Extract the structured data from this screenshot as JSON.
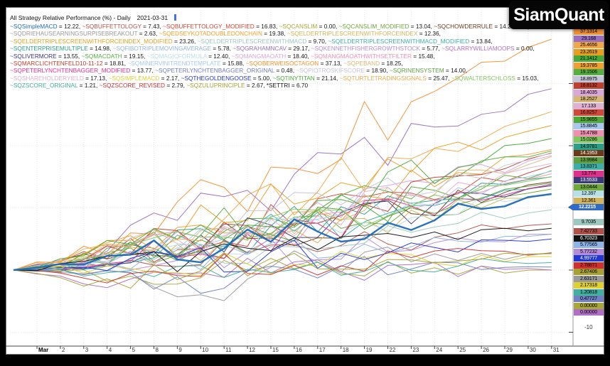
{
  "logo": {
    "text": "SiamQuant"
  },
  "title": {
    "text": "All Strategy Relative Performance (%) - Daily",
    "date": "2021-03-31"
  },
  "chart_data": {
    "type": "line",
    "title": "All Strategy Relative Performance (%) - Daily 2021-03-31",
    "x_categories": [
      "Mar",
      "2",
      "3",
      "4",
      "5",
      "8",
      "9",
      "10",
      "11",
      "12",
      "15",
      "16",
      "17",
      "18",
      "19",
      "22",
      "23",
      "24",
      "25",
      "26",
      "29",
      "30",
      "31"
    ],
    "ylim": [
      -10,
      41
    ],
    "grid": true,
    "y_axis_visible_label": "-10",
    "legend_position": "top",
    "series": [
      {
        "name": "~SQSimpleMACD",
        "legend_value": "12.22",
        "end_value": 12.2215,
        "end_label": "12.2215",
        "color": "#1e6bb8",
        "selected": true
      },
      {
        "name": "~SQBUFFETTOLOGY",
        "legend_value": "7.43",
        "end_value": 7.42733,
        "end_label": "7.42733",
        "color": "#b0524a"
      },
      {
        "name": "~SQBUFFETTOLOGY_MODIFIED",
        "legend_value": "16.83",
        "end_value": 16.8257,
        "end_label": "16.8257",
        "color": "#d04838"
      },
      {
        "name": "~SQCANSLIM",
        "legend_value": "0.00",
        "end_value": 0.0,
        "end_label": "0.00000",
        "color": "#a8a838"
      },
      {
        "name": "~SQCANSLIM_MODIFIED",
        "legend_value": "13.04",
        "end_value": 13.0444,
        "end_label": "13.0444",
        "color": "#70a83c"
      },
      {
        "name": "~SQCHOWDERRULE",
        "legend_value": "14.20",
        "end_value": 14.1953,
        "end_label": "14.1953",
        "color": "#6b3a1b"
      },
      {
        "name": "~SQ",
        "legend_value": null,
        "end_value": 15.9855,
        "end_label": "15.9855",
        "color": "#52a834",
        "truncated_by_logo": true
      },
      {
        "name": "~SQDRIEHAUSEARNINGSURPISEBREAKOUT",
        "legend_value": "2.63",
        "end_value": 2.63171,
        "end_label": "2.63171",
        "color": "#9a9a9a"
      },
      {
        "name": "~SQEDSEYKOTADOUBLEDONCHAIN",
        "legend_value": "19.38",
        "end_value": 19.3785,
        "end_label": "19.3785",
        "color": "#f0a030"
      },
      {
        "name": "~SQELDERTRIPLESCREENWITHFORCEINDEX",
        "legend_value": "12.36",
        "end_value": 12.361,
        "end_label": "12.361",
        "color": "#d2b45a"
      },
      {
        "name": "~SQELDERTRIPLESCREENWITHFORCEINDEX_MODIFIED",
        "legend_value": "23.26",
        "end_value": 23.2619,
        "end_label": "23.2619",
        "color": "#e8a01c"
      },
      {
        "name": "~SQELDERTRIPLESCREENWITHMACD",
        "legend_value": "9.70",
        "end_value": 9.7035,
        "end_label": "9.7035",
        "color": "#9cc8c0"
      },
      {
        "name": "~SQELDERTRIPLESCREENWITHMACD_MODIFIED",
        "legend_value": "13.84",
        "end_value": 13.8371,
        "end_label": "13.8371",
        "color": "#3cb0a8"
      },
      {
        "name": "~SQENTERPRISEMULTIPLE",
        "legend_value": "14.98",
        "end_value": 14.9781,
        "end_label": "14.9781",
        "color": "#2aa088"
      },
      {
        "name": "~SQFIBOTRIPLEMOVINGAVERAGE",
        "legend_value": "5.78",
        "end_value": 5.77565,
        "end_label": "5.77565",
        "color": "#8fb4e8"
      },
      {
        "name": "~SQGRAHAMNCAV",
        "legend_value": "29.17",
        "end_value": 29.168,
        "end_label": "29.168",
        "color": "#9a6fc0"
      },
      {
        "name": "~SQKENNETHFISHERGROWTHSTOCK",
        "legend_value": "5.77",
        "end_value": 5.77232,
        "end_label": "5.77232",
        "color": "#b48cd8"
      },
      {
        "name": "~SQLARRYWILLIAMOOPS",
        "legend_value": "0.00",
        "end_value": 0.0,
        "end_label": "0.00000",
        "color": "#b070c8"
      },
      {
        "name": "~SQLIVERMORE",
        "legend_value": "13.55",
        "end_value": 13.5533,
        "end_label": "13.5533",
        "color": "#3a3a78"
      },
      {
        "name": "~SQMACDATH",
        "legend_value": "19.15",
        "end_value": 19.1506,
        "end_label": "19.1506",
        "color": "#55b040"
      },
      {
        "name": "~SQMAGICFORMULA",
        "legend_value": "12.40",
        "end_value": 12.397,
        "end_label": "12.397",
        "color": "#b8e0e8"
      },
      {
        "name": "~SQMANGMAOATH",
        "legend_value": "18.40",
        "end_value": 18.4035,
        "end_label": "18.4035",
        "color": "#d8a8d8"
      },
      {
        "name": "~SQMANGMAOATHWITHSETFILTER",
        "legend_value": "15.48",
        "end_value": 15.4788,
        "end_label": "15.4788",
        "color": "#f090b0"
      },
      {
        "name": "~SQMARCLICHTENFELD10-11-12",
        "legend_value": "18.81",
        "end_value": 18.8132,
        "end_label": "18.8132",
        "color": "#c04030"
      },
      {
        "name": "~SQMINERVINITRENDTEMPLATE",
        "legend_value": "15.88",
        "end_value": 15.8845,
        "end_label": "15.8845",
        "color": "#a8c8f0"
      },
      {
        "name": "~SQOBERWEISOCTAGON",
        "legend_value": "37.13",
        "end_value": 37.1314,
        "end_label": "37.1314",
        "color": "#f49030"
      },
      {
        "name": "~SQPEBAND",
        "legend_value": "18.25",
        "end_value": 18.2527,
        "end_label": "18.2527",
        "color": "#d8b878"
      },
      {
        "name": "~SQPETERLYNCHTENBAGGER_MODIFIED",
        "legend_value": "13.77",
        "end_value": 13.774,
        "end_label": "13.774",
        "color": "#e0308c"
      },
      {
        "name": "~SQPETERLYNCHTENBAGGER_ORIGINAL",
        "legend_value": "0.48",
        "end_value": 0.47727,
        "end_label": "0.47727",
        "color": "#7080c0"
      },
      {
        "name": "~SQPIOTROSKIFSCORE",
        "legend_value": "18.90",
        "end_value": 18.8975,
        "end_label": "18.8975",
        "color": "#c4c4d8"
      },
      {
        "name": "~SQRINENSYSTEM",
        "legend_value": "14.00",
        "end_value": 13.9984,
        "end_label": "13.9984",
        "color": "#60a040"
      },
      {
        "name": "~SQSHAREHOLDERYIELD",
        "legend_value": "17.13",
        "end_value": 17.133,
        "end_label": "17.133",
        "color": "#e0b0d0"
      },
      {
        "name": "~SQSIMPLEMACD",
        "legend_value": "2.17",
        "end_value": 2.17318,
        "end_label": "2.17318",
        "color": "#e0d030"
      },
      {
        "name": "~SQTHEGOLDENGOOSE",
        "legend_value": "5.00",
        "end_value": 4.99777,
        "end_label": "4.99777",
        "color": "#2038d0"
      },
      {
        "name": "~SQTINYTITAN",
        "legend_value": "21.14",
        "end_value": 21.1412,
        "end_label": "21.1412",
        "color": "#48a838"
      },
      {
        "name": "~SQTURTLETRADINGSIGNALS",
        "legend_value": "25.47",
        "end_value": 25.4656,
        "end_label": "25.4656",
        "color": "#f0a848"
      },
      {
        "name": "~SQWALTERSCHLOSS",
        "legend_value": "15.03",
        "end_value": 15.0286,
        "end_label": "15.0286",
        "color": "#80c860"
      },
      {
        "name": "~SQZSCORE_ORIGINAL",
        "legend_value": "1.21",
        "end_value": 1.20818,
        "end_label": "1.20818",
        "color": "#40b0a0"
      },
      {
        "name": "~SQZSCORE_REVISED",
        "legend_value": "2.79",
        "end_value": 2.78871,
        "end_label": "2.78871",
        "color": "#d03030"
      },
      {
        "name": "~SQZULUPRINCIPLE",
        "legend_value": "2.67",
        "end_value": 2.67406,
        "end_label": "2.67406",
        "color": "#a8a030"
      },
      {
        "name": "*SETTRI",
        "legend_value": "6.70",
        "end_value": 6.70323,
        "end_label": "6.70323",
        "color": "#101010"
      }
    ]
  }
}
